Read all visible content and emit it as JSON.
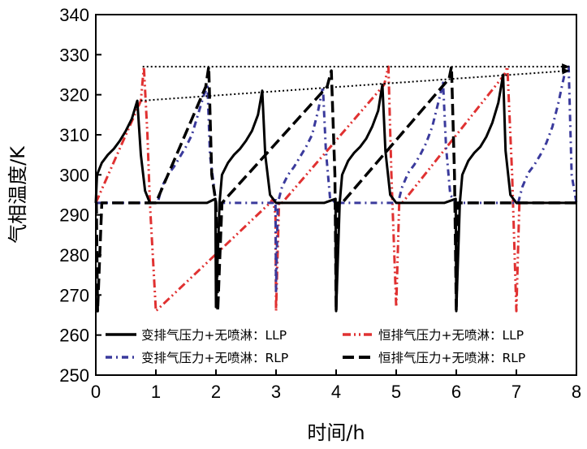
{
  "chart_data": {
    "type": "line",
    "xlabel": "时间/h",
    "ylabel": "气相温度/K",
    "xlim": [
      0,
      8
    ],
    "ylim": [
      250,
      340
    ],
    "xticks": [
      0,
      1,
      2,
      3,
      4,
      5,
      6,
      7,
      8
    ],
    "yticks": [
      250,
      260,
      270,
      280,
      290,
      300,
      310,
      320,
      330,
      340
    ],
    "grid": false,
    "legend_position": "bottom-inside",
    "series": [
      {
        "name": "变排气压力+无喷淋：LLP",
        "color": "#000000",
        "style": "solid",
        "x": [
          0,
          0.02,
          0.1,
          0.2,
          0.3,
          0.4,
          0.5,
          0.6,
          0.69,
          0.75,
          0.82,
          0.9,
          1.0,
          1.85,
          1.99,
          2.0,
          2.06,
          2.1,
          2.2,
          2.3,
          2.4,
          2.5,
          2.6,
          2.7,
          2.77,
          2.82,
          2.9,
          3.0,
          3.8,
          3.99,
          4.0,
          4.06,
          4.1,
          4.2,
          4.3,
          4.4,
          4.5,
          4.6,
          4.7,
          4.77,
          4.82,
          4.9,
          5.0,
          5.8,
          5.99,
          6.0,
          6.06,
          6.1,
          6.2,
          6.3,
          6.4,
          6.5,
          6.6,
          6.7,
          6.78,
          6.82,
          6.9,
          7.0,
          8.0
        ],
        "y": [
          293,
          300,
          303,
          305,
          306.5,
          308.5,
          311,
          314,
          318.5,
          305,
          296,
          293,
          293,
          293,
          294,
          267,
          293,
          300,
          303,
          305,
          306.5,
          308.5,
          311,
          315,
          321,
          305,
          295,
          293,
          293,
          294,
          266,
          293,
          300,
          303.5,
          305.5,
          307,
          309,
          312,
          316,
          322.5,
          306,
          295,
          293,
          293,
          294,
          266,
          293,
          300,
          303.5,
          305.5,
          307,
          309.5,
          313,
          318,
          325,
          306,
          295,
          293,
          293
        ]
      },
      {
        "name": "变排气压力+无喷淋：RLP",
        "color": "#3a3a9c",
        "style": "dashdot",
        "x": [
          0,
          1.0,
          1.03,
          1.1,
          1.2,
          1.3,
          1.4,
          1.5,
          1.6,
          1.7,
          1.8,
          1.86,
          1.9,
          2.0,
          2.95,
          2.99,
          3.0,
          3.03,
          3.1,
          3.2,
          3.3,
          3.4,
          3.5,
          3.6,
          3.7,
          3.78,
          3.83,
          3.9,
          4.0,
          5.0,
          5.03,
          5.1,
          5.2,
          5.3,
          5.4,
          5.5,
          5.6,
          5.7,
          5.78,
          5.83,
          5.9,
          6.0,
          7.0,
          7.03,
          7.1,
          7.2,
          7.3,
          7.4,
          7.5,
          7.6,
          7.7,
          7.8,
          7.87,
          7.92,
          8.0
        ],
        "y": [
          293,
          293,
          293,
          297,
          300,
          302,
          304.5,
          307,
          310,
          315,
          320,
          322,
          305,
          293,
          293,
          294,
          271,
          293,
          297,
          300,
          302,
          304.5,
          307,
          310,
          316,
          322,
          306,
          294,
          293,
          293,
          293,
          297,
          300.5,
          302.5,
          305,
          308,
          312,
          318,
          323,
          307,
          295,
          293,
          293,
          293,
          297,
          300.5,
          302.5,
          305,
          308,
          312,
          318,
          325,
          327,
          300,
          293
        ]
      },
      {
        "name": "恒排气压力+无喷淋：LLP",
        "color": "#e03131",
        "style": "dashdotdot",
        "x": [
          0,
          0.75,
          0.8,
          0.86,
          0.9,
          1.0,
          2.9,
          2.95,
          2.99,
          3.0,
          3.05,
          3.1,
          4.8,
          4.87,
          4.92,
          5.0,
          5.05,
          5.1,
          6.8,
          6.85,
          6.93,
          7.0,
          7.05,
          7.1,
          8.0
        ],
        "y": [
          293,
          318.5,
          327,
          310,
          293,
          266,
          293,
          294,
          290,
          266,
          293,
          293,
          322.5,
          327,
          300,
          267,
          293,
          293,
          325,
          327,
          300,
          266,
          293,
          293,
          293
        ]
      },
      {
        "name": "恒排气压力+无喷淋：RLP",
        "color": "#000000",
        "style": "dash",
        "x": [
          0,
          0.01,
          0.03,
          0.1,
          1.0,
          1.83,
          1.88,
          1.93,
          2.0,
          2.03,
          2.1,
          3.85,
          3.92,
          3.98,
          4.0,
          4.03,
          4.1,
          5.88,
          5.92,
          5.97,
          6.0,
          6.03,
          6.1,
          7.9,
          8.0
        ],
        "y": [
          293,
          293,
          266,
          293,
          293,
          322,
          327,
          300,
          293,
          266,
          293,
          322,
          326,
          300,
          266,
          293,
          293,
          324,
          327,
          300,
          266,
          293,
          293,
          293,
          293
        ]
      }
    ],
    "annotations": [
      {
        "type": "arrow",
        "style": "dotted",
        "from": [
          0.78,
          327
        ],
        "to": [
          7.88,
          327
        ]
      },
      {
        "type": "arrow",
        "style": "dotted",
        "from": [
          0.75,
          318.5
        ],
        "to": [
          7.88,
          326
        ]
      }
    ]
  }
}
